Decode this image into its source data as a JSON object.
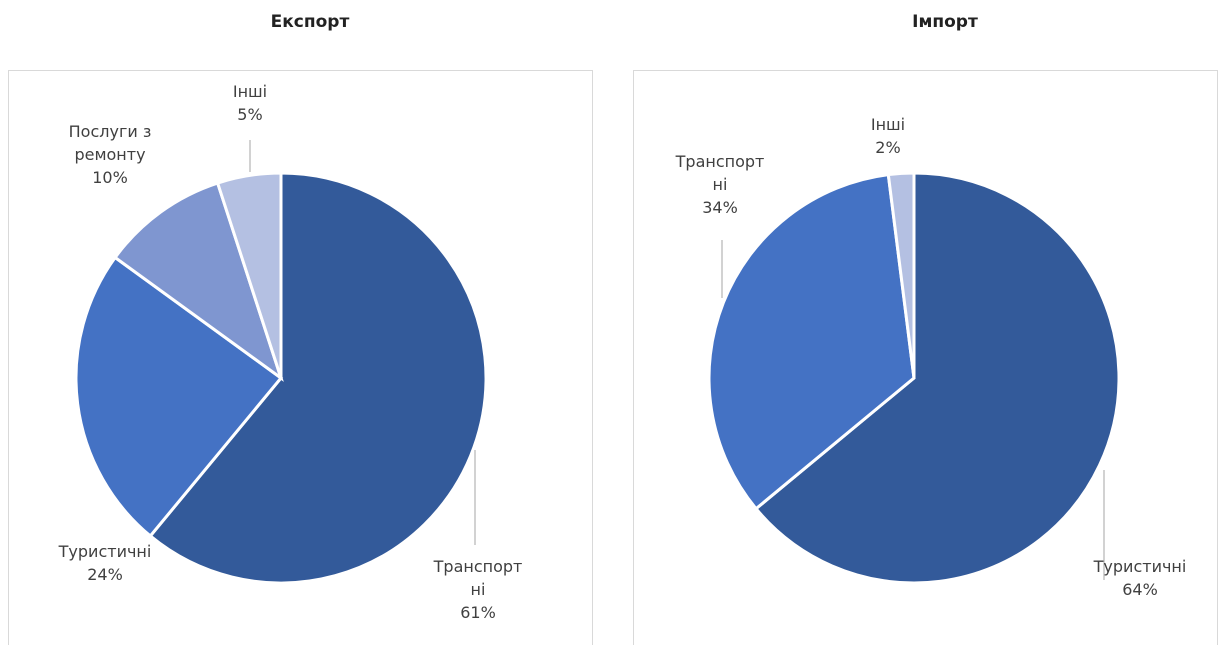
{
  "chart_data": [
    {
      "type": "pie",
      "title": "Експорт",
      "categories": [
        "Транспортні",
        "Туристичні",
        "Послуги з ремонту",
        "Інші"
      ],
      "values": [
        61,
        24,
        10,
        5
      ],
      "value_labels": [
        "61%",
        "24%",
        "10%",
        "5%"
      ],
      "colors": [
        "#335a9a",
        "#4472c4",
        "#7f96d0",
        "#b4c0e2"
      ]
    },
    {
      "type": "pie",
      "title": "Імпорт",
      "categories": [
        "Туристичні",
        "Транспортні",
        "Інші"
      ],
      "values": [
        64,
        34,
        2
      ],
      "value_labels": [
        "64%",
        "34%",
        "2%"
      ],
      "colors": [
        "#335a9a",
        "#4472c4",
        "#b4c0e2"
      ]
    }
  ]
}
